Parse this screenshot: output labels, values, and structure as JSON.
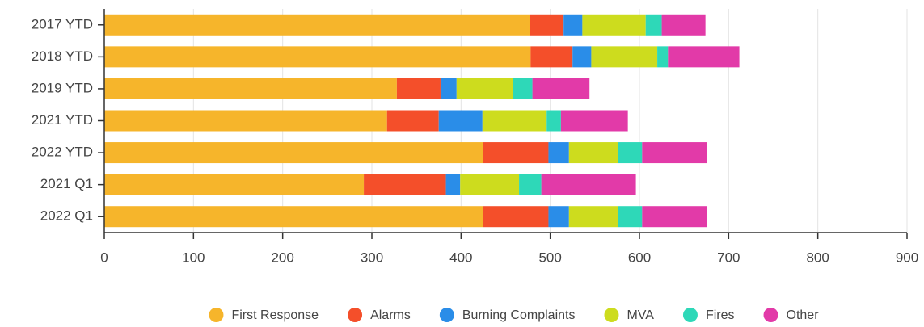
{
  "chart_data": {
    "type": "bar",
    "orientation": "horizontal",
    "stacked": true,
    "categories": [
      "2017 YTD",
      "2018 YTD",
      "2019 YTD",
      "2021 YTD",
      "2022 YTD",
      "2021 Q1",
      "2022 Q1"
    ],
    "series": [
      {
        "name": "First Response",
        "color": "#f6b52b",
        "values": [
          477,
          478,
          328,
          317,
          425,
          291,
          425
        ]
      },
      {
        "name": "Alarms",
        "color": "#f44f2a",
        "values": [
          38,
          47,
          49,
          58,
          73,
          92,
          73
        ]
      },
      {
        "name": "Burning Complaints",
        "color": "#2a8de8",
        "values": [
          21,
          21,
          18,
          49,
          23,
          16,
          23
        ]
      },
      {
        "name": "MVA",
        "color": "#cddc1e",
        "values": [
          71,
          74,
          63,
          72,
          55,
          66,
          55
        ]
      },
      {
        "name": "Fires",
        "color": "#2ed8b8",
        "values": [
          18,
          12,
          22,
          16,
          27,
          25,
          27
        ]
      },
      {
        "name": "Other",
        "color": "#e23aa8",
        "values": [
          49,
          80,
          64,
          75,
          73,
          106,
          73
        ]
      }
    ],
    "xlim": [
      0,
      900
    ],
    "xticks": [
      0,
      100,
      200,
      300,
      400,
      500,
      600,
      700,
      800,
      900
    ],
    "grid": true,
    "legend": "bottom"
  }
}
